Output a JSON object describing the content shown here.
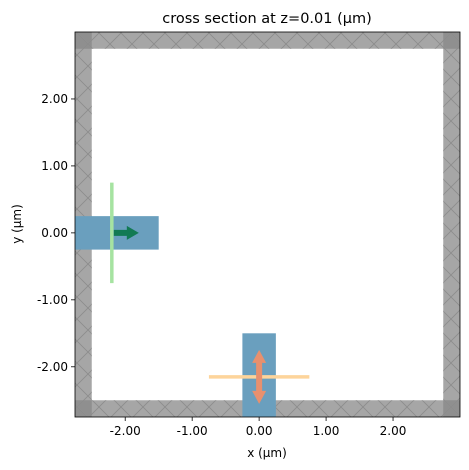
{
  "title": "cross section at z=0.01 (μm)",
  "xlabel": "x (μm)",
  "ylabel": "y (μm)",
  "xlim": [
    -2.75,
    3.0
  ],
  "ylim": [
    -2.75,
    3.0
  ],
  "xticks": [
    {
      "value": -2.0,
      "label": "-2.00"
    },
    {
      "value": -1.0,
      "label": "-1.00"
    },
    {
      "value": 0.0,
      "label": "0.00"
    },
    {
      "value": 1.0,
      "label": "1.00"
    },
    {
      "value": 2.0,
      "label": "2.00"
    }
  ],
  "yticks": [
    {
      "value": 2.0,
      "label": "2.00"
    },
    {
      "value": 1.0,
      "label": "1.00"
    },
    {
      "value": 0.0,
      "label": "0.00"
    },
    {
      "value": -1.0,
      "label": "-1.00"
    },
    {
      "value": -2.0,
      "label": "-2.00"
    }
  ],
  "colors": {
    "pml": "#a6a6a6",
    "pml_hatch": "#8c8c8c",
    "pml_corner": "#8f8f8f",
    "waveguide": "#6a9fbe",
    "source": "#a6e3a1",
    "source_arrow": "#127a53",
    "monitor": "#fdd49b",
    "monitor_arrow": "#e8906e"
  },
  "simulation": {
    "domain": {
      "xmin": -2.75,
      "xmax": 3.0,
      "ymin": -2.75,
      "ymax": 3.0
    },
    "pml_thickness": 0.25
  },
  "structures": [
    {
      "name": "waveguide-horizontal",
      "xmin": -2.75,
      "xmax": -1.5,
      "ymin": -0.25,
      "ymax": 0.25
    },
    {
      "name": "waveguide-vertical",
      "xmin": -0.25,
      "xmax": 0.25,
      "ymin": -2.75,
      "ymax": -1.5
    }
  ],
  "source": {
    "x": -2.2,
    "ymin": -0.75,
    "ymax": 0.75,
    "direction": "+x"
  },
  "monitor": {
    "y": -2.15,
    "xmin": -0.75,
    "xmax": 0.75,
    "direction": "±y"
  }
}
